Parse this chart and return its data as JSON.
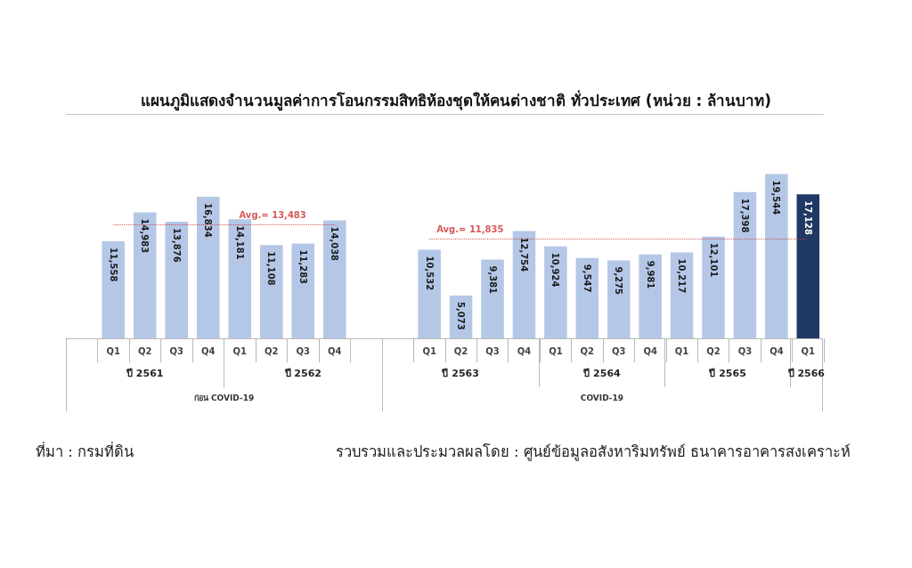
{
  "chart_data": [
    {
      "type": "bar",
      "title": "แผนภูมิแสดงจำนวนมูลค่าการโอนกรรมสิทธิห้องชุดให้คนต่างชาติ ทั่วประเทศ (หน่วย : ล้านบาท)",
      "categories": [
        "Q1",
        "Q2",
        "Q3",
        "Q4",
        "Q1",
        "Q2",
        "Q3",
        "Q4"
      ],
      "values": [
        11558,
        14983,
        13876,
        16834,
        14181,
        11108,
        11283,
        14038
      ],
      "value_labels": [
        "11,558",
        "14,983",
        "13,876",
        "16,834",
        "14,181",
        "11,108",
        "11,283",
        "14,038"
      ],
      "color": "#b4c7e7",
      "ref_lines": [
        {
          "axis": "y",
          "value": 13483,
          "label": "Avg.= 13,483",
          "color": "#d03b3b",
          "line_style": "dotted"
        }
      ],
      "annotations": [
        "ปี 2561",
        "ปี 2562",
        "ก่อน COVID-19",
        "ที่มา : กรมที่ดิน"
      ]
    },
    {
      "type": "bar",
      "categories": [
        "Q1",
        "Q2",
        "Q3",
        "Q4",
        "Q1",
        "Q2",
        "Q3",
        "Q4",
        "Q1",
        "Q2",
        "Q3",
        "Q4",
        "Q1"
      ],
      "values": [
        10532,
        5073,
        9381,
        12754,
        10924,
        9547,
        9275,
        9981,
        10217,
        12101,
        17398,
        19544,
        17128
      ],
      "value_labels": [
        "10,532",
        "5,073",
        "9,381",
        "12,754",
        "10,924",
        "9,547",
        "9,275",
        "9,981",
        "10,217",
        "12,101",
        "17,398",
        "19,544",
        "17,128"
      ],
      "colors": [
        "#b4c7e7",
        "#b4c7e7",
        "#b4c7e7",
        "#b4c7e7",
        "#b4c7e7",
        "#b4c7e7",
        "#b4c7e7",
        "#b4c7e7",
        "#b4c7e7",
        "#b4c7e7",
        "#b4c7e7",
        "#b4c7e7",
        "#1f3864"
      ],
      "ref_lines": [
        {
          "axis": "y",
          "value": 11835,
          "label": "Avg.= 11,835",
          "color": "#d03b3b",
          "line_style": "dotted"
        }
      ],
      "annotations": [
        "ปี 2563",
        "ปี 2564",
        "ปี 2565",
        "ปี 2566",
        "COVID-19",
        "รวบรวมและประมวลผลโดย : ศูนย์ข้อมูลอสังหาริมทรัพย์ ธนาคารอาคารสงเคราะห์"
      ]
    }
  ]
}
